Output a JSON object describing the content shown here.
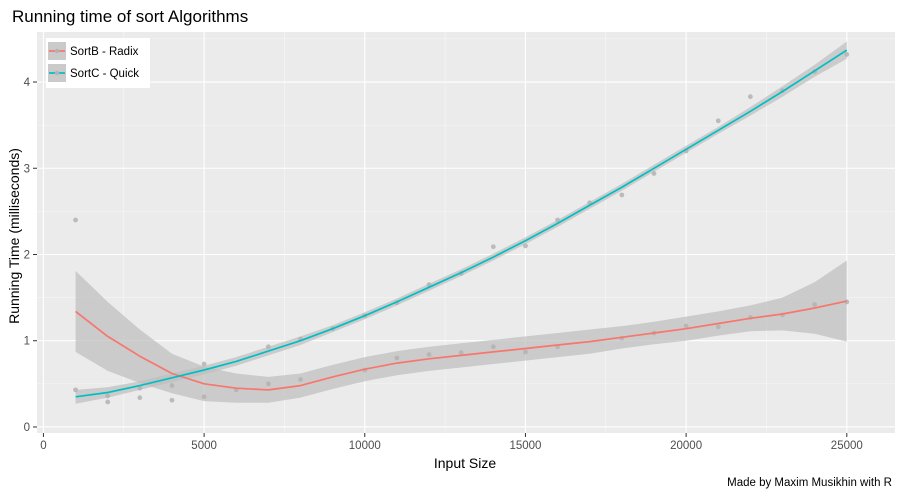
{
  "chart_data": {
    "type": "scatter",
    "title": "Running time of sort Algorithms",
    "xlabel": "Input Size",
    "ylabel": "Running Time (milliseconds)",
    "caption": "Made by Maxim Musikhin with R",
    "xlim": [
      -200,
      26500
    ],
    "ylim": [
      -0.07,
      4.58
    ],
    "x_ticks": [
      0,
      5000,
      10000,
      15000,
      20000,
      25000
    ],
    "x_tick_labels": [
      "0",
      "5000",
      "10000",
      "15000",
      "20000",
      "25000"
    ],
    "y_ticks": [
      0,
      1,
      2,
      3,
      4
    ],
    "y_tick_labels": [
      "0",
      "1",
      "2",
      "3",
      "4"
    ],
    "grid": true,
    "legend_position": "top-left",
    "colors": {
      "panel": "#ebebeb",
      "grid": "#ffffff",
      "points": "#b3b3b3",
      "ribbon": "#bdbdbd"
    },
    "series": [
      {
        "name": "SortB - Radix",
        "color": "#f8766d",
        "points": [
          [
            1000,
            0.43
          ],
          [
            2000,
            0.29
          ],
          [
            3000,
            0.34
          ],
          [
            4000,
            0.31
          ],
          [
            5000,
            0.35
          ],
          [
            6000,
            0.43
          ],
          [
            7000,
            0.5
          ],
          [
            8000,
            0.55
          ],
          [
            10000,
            0.66
          ],
          [
            11000,
            0.8
          ],
          [
            12000,
            0.84
          ],
          [
            13000,
            0.86
          ],
          [
            14000,
            0.93
          ],
          [
            15000,
            0.87
          ],
          [
            16000,
            0.93
          ],
          [
            18000,
            1.03
          ],
          [
            19000,
            1.09
          ],
          [
            20000,
            1.17
          ],
          [
            21000,
            1.16
          ],
          [
            22000,
            1.27
          ],
          [
            23000,
            1.3
          ],
          [
            24000,
            1.42
          ],
          [
            25000,
            1.45
          ]
        ],
        "smooth": [
          [
            1000,
            1.34
          ],
          [
            2000,
            1.05
          ],
          [
            3000,
            0.82
          ],
          [
            4000,
            0.62
          ],
          [
            5000,
            0.5
          ],
          [
            6000,
            0.45
          ],
          [
            7000,
            0.43
          ],
          [
            8000,
            0.48
          ],
          [
            9000,
            0.58
          ],
          [
            10000,
            0.67
          ],
          [
            11000,
            0.74
          ],
          [
            12000,
            0.79
          ],
          [
            13000,
            0.83
          ],
          [
            14000,
            0.87
          ],
          [
            15000,
            0.91
          ],
          [
            16000,
            0.95
          ],
          [
            17000,
            0.99
          ],
          [
            18000,
            1.04
          ],
          [
            19000,
            1.09
          ],
          [
            20000,
            1.14
          ],
          [
            21000,
            1.2
          ],
          [
            22000,
            1.26
          ],
          [
            23000,
            1.31
          ],
          [
            24000,
            1.38
          ],
          [
            25000,
            1.46
          ]
        ],
        "band_upper": [
          [
            1000,
            1.81
          ],
          [
            2000,
            1.45
          ],
          [
            3000,
            1.13
          ],
          [
            4000,
            0.85
          ],
          [
            5000,
            0.7
          ],
          [
            6000,
            0.62
          ],
          [
            7000,
            0.58
          ],
          [
            8000,
            0.62
          ],
          [
            9000,
            0.72
          ],
          [
            10000,
            0.81
          ],
          [
            11000,
            0.88
          ],
          [
            12000,
            0.93
          ],
          [
            13000,
            0.97
          ],
          [
            14000,
            1.01
          ],
          [
            15000,
            1.05
          ],
          [
            16000,
            1.09
          ],
          [
            17000,
            1.13
          ],
          [
            18000,
            1.17
          ],
          [
            19000,
            1.22
          ],
          [
            20000,
            1.28
          ],
          [
            21000,
            1.34
          ],
          [
            22000,
            1.41
          ],
          [
            23000,
            1.5
          ],
          [
            24000,
            1.68
          ],
          [
            25000,
            1.93
          ]
        ],
        "band_lower": [
          [
            1000,
            0.87
          ],
          [
            2000,
            0.65
          ],
          [
            3000,
            0.51
          ],
          [
            4000,
            0.39
          ],
          [
            5000,
            0.3
          ],
          [
            6000,
            0.28
          ],
          [
            7000,
            0.28
          ],
          [
            8000,
            0.34
          ],
          [
            9000,
            0.44
          ],
          [
            10000,
            0.53
          ],
          [
            11000,
            0.6
          ],
          [
            12000,
            0.65
          ],
          [
            13000,
            0.69
          ],
          [
            14000,
            0.73
          ],
          [
            15000,
            0.77
          ],
          [
            16000,
            0.81
          ],
          [
            17000,
            0.85
          ],
          [
            18000,
            0.91
          ],
          [
            19000,
            0.96
          ],
          [
            20000,
            1.0
          ],
          [
            21000,
            1.06
          ],
          [
            22000,
            1.11
          ],
          [
            23000,
            1.12
          ],
          [
            24000,
            1.08
          ],
          [
            25000,
            0.99
          ]
        ]
      },
      {
        "name": "SortC - Quick",
        "color": "#00bfc4",
        "points": [
          [
            1000,
            2.4
          ],
          [
            2000,
            0.36
          ],
          [
            3000,
            0.45
          ],
          [
            4000,
            0.48
          ],
          [
            5000,
            0.73
          ],
          [
            7000,
            0.93
          ],
          [
            8000,
            1.02
          ],
          [
            9000,
            1.14
          ],
          [
            10000,
            1.29
          ],
          [
            11000,
            1.44
          ],
          [
            12000,
            1.65
          ],
          [
            13000,
            1.78
          ],
          [
            14000,
            2.09
          ],
          [
            15000,
            2.1
          ],
          [
            16000,
            2.4
          ],
          [
            17000,
            2.6
          ],
          [
            18000,
            2.69
          ],
          [
            19000,
            2.94
          ],
          [
            20000,
            3.2
          ],
          [
            21000,
            3.55
          ],
          [
            22000,
            3.83
          ],
          [
            23000,
            3.9
          ],
          [
            24000,
            4.12
          ],
          [
            25000,
            4.32
          ]
        ],
        "smooth": [
          [
            1000,
            0.35
          ],
          [
            2000,
            0.4
          ],
          [
            3000,
            0.48
          ],
          [
            4000,
            0.57
          ],
          [
            5000,
            0.66
          ],
          [
            6000,
            0.76
          ],
          [
            7000,
            0.88
          ],
          [
            8000,
            1.0
          ],
          [
            9000,
            1.14
          ],
          [
            10000,
            1.29
          ],
          [
            11000,
            1.45
          ],
          [
            12000,
            1.62
          ],
          [
            13000,
            1.79
          ],
          [
            14000,
            1.97
          ],
          [
            15000,
            2.16
          ],
          [
            16000,
            2.36
          ],
          [
            17000,
            2.57
          ],
          [
            18000,
            2.78
          ],
          [
            19000,
            3.0
          ],
          [
            20000,
            3.22
          ],
          [
            21000,
            3.44
          ],
          [
            22000,
            3.66
          ],
          [
            23000,
            3.89
          ],
          [
            24000,
            4.13
          ],
          [
            25000,
            4.37
          ]
        ],
        "band_upper": [
          [
            1000,
            0.43
          ],
          [
            2000,
            0.46
          ],
          [
            3000,
            0.53
          ],
          [
            4000,
            0.62
          ],
          [
            5000,
            0.71
          ],
          [
            6000,
            0.81
          ],
          [
            7000,
            0.93
          ],
          [
            8000,
            1.05
          ],
          [
            9000,
            1.18
          ],
          [
            10000,
            1.33
          ],
          [
            11000,
            1.49
          ],
          [
            12000,
            1.66
          ],
          [
            13000,
            1.83
          ],
          [
            14000,
            2.01
          ],
          [
            15000,
            2.2
          ],
          [
            16000,
            2.4
          ],
          [
            17000,
            2.61
          ],
          [
            18000,
            2.82
          ],
          [
            19000,
            3.04
          ],
          [
            20000,
            3.26
          ],
          [
            21000,
            3.48
          ],
          [
            22000,
            3.71
          ],
          [
            23000,
            3.95
          ],
          [
            24000,
            4.2
          ],
          [
            25000,
            4.47
          ]
        ],
        "band_lower": [
          [
            1000,
            0.27
          ],
          [
            2000,
            0.34
          ],
          [
            3000,
            0.43
          ],
          [
            4000,
            0.52
          ],
          [
            5000,
            0.61
          ],
          [
            6000,
            0.71
          ],
          [
            7000,
            0.83
          ],
          [
            8000,
            0.95
          ],
          [
            9000,
            1.1
          ],
          [
            10000,
            1.25
          ],
          [
            11000,
            1.41
          ],
          [
            12000,
            1.58
          ],
          [
            13000,
            1.75
          ],
          [
            14000,
            1.93
          ],
          [
            15000,
            2.12
          ],
          [
            16000,
            2.32
          ],
          [
            17000,
            2.53
          ],
          [
            18000,
            2.74
          ],
          [
            19000,
            2.96
          ],
          [
            20000,
            3.18
          ],
          [
            21000,
            3.4
          ],
          [
            22000,
            3.61
          ],
          [
            23000,
            3.83
          ],
          [
            24000,
            4.06
          ],
          [
            25000,
            4.27
          ]
        ]
      }
    ]
  }
}
